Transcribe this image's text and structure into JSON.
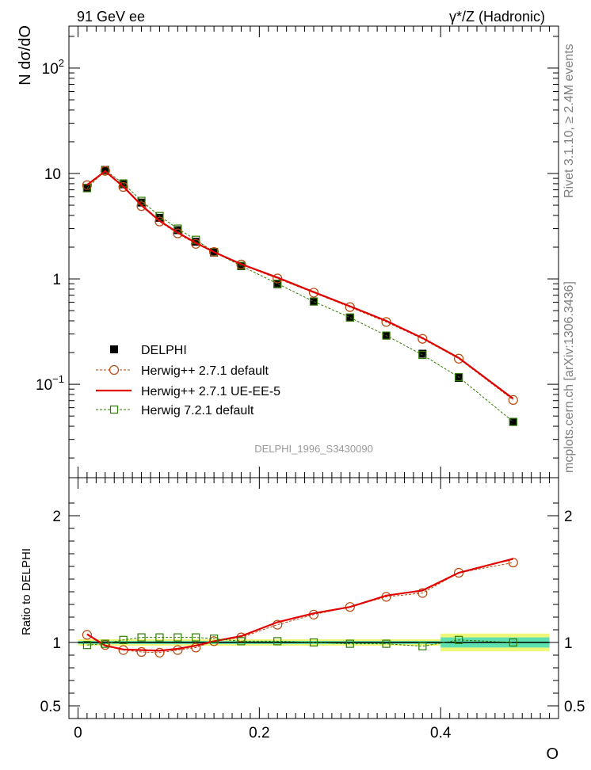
{
  "header": {
    "left": "91 GeV ee",
    "right": "γ*/Z (Hadronic)"
  },
  "side": {
    "rivet": "Rivet 3.1.10, ≥ 2.4M events",
    "mcplots": "mcplots.cern.ch [arXiv:1306.3436]"
  },
  "chart_data": [
    {
      "type": "line",
      "panel": "main",
      "ylabel": "N dσ/dO",
      "yscale": "log",
      "ylim": [
        0.013,
        250
      ],
      "xlim": [
        -0.01,
        0.53
      ],
      "yticks": [
        {
          "value": 100,
          "base": "10",
          "exp": "2"
        },
        {
          "value": 10,
          "text": "10"
        },
        {
          "value": 1,
          "text": "1"
        },
        {
          "value": 0.1,
          "base": "10",
          "exp": "−1"
        }
      ],
      "watermark": "DELPHI_1996_S3430090",
      "legend_position": "lower-left",
      "x": [
        0.01,
        0.03,
        0.05,
        0.07,
        0.09,
        0.11,
        0.13,
        0.15,
        0.18,
        0.22,
        0.26,
        0.3,
        0.34,
        0.38,
        0.42,
        0.48
      ],
      "series": [
        {
          "name": "DELPHI",
          "color": "#000000",
          "style": "data",
          "values": [
            7.3,
            10.8,
            7.9,
            5.3,
            3.8,
            2.9,
            2.25,
            1.78,
            1.32,
            0.89,
            0.61,
            0.43,
            0.29,
            0.195,
            0.115,
            0.044
          ]
        },
        {
          "name": "Herwig++ 2.7.1 default",
          "color": "#b8460b",
          "style": "circle-dashed",
          "values": [
            7.75,
            10.6,
            7.45,
            4.9,
            3.5,
            2.7,
            2.15,
            1.8,
            1.37,
            1.01,
            0.74,
            0.54,
            0.39,
            0.27,
            0.175,
            0.071
          ]
        },
        {
          "name": "Herwig++ 2.7.1 UE-EE-5",
          "color": "#e00000",
          "style": "solid",
          "values": [
            7.8,
            10.5,
            7.5,
            5.0,
            3.55,
            2.75,
            2.2,
            1.8,
            1.38,
            1.03,
            0.75,
            0.55,
            0.4,
            0.275,
            0.178,
            0.073
          ]
        },
        {
          "name": "Herwig 7.2.1 default",
          "color": "#2e7d00",
          "style": "square-dashed",
          "values": [
            7.25,
            10.7,
            8.05,
            5.5,
            3.95,
            3.0,
            2.35,
            1.8,
            1.33,
            0.9,
            0.61,
            0.43,
            0.29,
            0.19,
            0.117,
            0.044
          ]
        }
      ]
    },
    {
      "type": "line",
      "panel": "ratio",
      "ylabel": "Ratio to DELPHI",
      "xlabel": "O",
      "ylim": [
        0.4,
        2.3
      ],
      "xlim": [
        -0.01,
        0.53
      ],
      "yticks": [
        {
          "value": 2,
          "text": "2"
        },
        {
          "value": 1,
          "text": "1"
        },
        {
          "value": 0.5,
          "text": "0.5"
        }
      ],
      "xticks": [
        {
          "value": 0,
          "text": "0"
        },
        {
          "value": 0.2,
          "text": "0.2"
        },
        {
          "value": 0.4,
          "text": "0.4"
        }
      ],
      "uncertainty_band": {
        "stat_color": "#5fe0b0",
        "total_color": "#eef77a",
        "segments": [
          {
            "x0": 0.0,
            "x1": 0.4,
            "stat": 0.012,
            "total": 0.025
          },
          {
            "x0": 0.4,
            "x1": 0.52,
            "stat": 0.04,
            "total": 0.07
          }
        ]
      },
      "x": [
        0.01,
        0.03,
        0.05,
        0.07,
        0.09,
        0.11,
        0.13,
        0.15,
        0.18,
        0.22,
        0.26,
        0.3,
        0.34,
        0.38,
        0.42,
        0.48
      ],
      "series": [
        {
          "name": "Herwig++ 2.7.1 default",
          "color": "#b8460b",
          "style": "circle-dashed",
          "values": [
            1.06,
            0.98,
            0.94,
            0.925,
            0.92,
            0.94,
            0.96,
            1.01,
            1.04,
            1.14,
            1.22,
            1.28,
            1.36,
            1.39,
            1.55,
            1.63
          ]
        },
        {
          "name": "Herwig++ 2.7.1 UE-EE-5",
          "color": "#e00000",
          "style": "solid",
          "values": [
            1.065,
            0.975,
            0.945,
            0.94,
            0.935,
            0.95,
            0.975,
            1.01,
            1.05,
            1.16,
            1.23,
            1.28,
            1.37,
            1.41,
            1.55,
            1.66
          ]
        },
        {
          "name": "Herwig 7.2.1 default",
          "color": "#2e7d00",
          "style": "square-dashed",
          "values": [
            0.98,
            0.99,
            1.02,
            1.04,
            1.04,
            1.04,
            1.04,
            1.03,
            1.01,
            1.01,
            1.0,
            0.99,
            0.99,
            0.97,
            1.02,
            1.0
          ]
        }
      ]
    }
  ]
}
